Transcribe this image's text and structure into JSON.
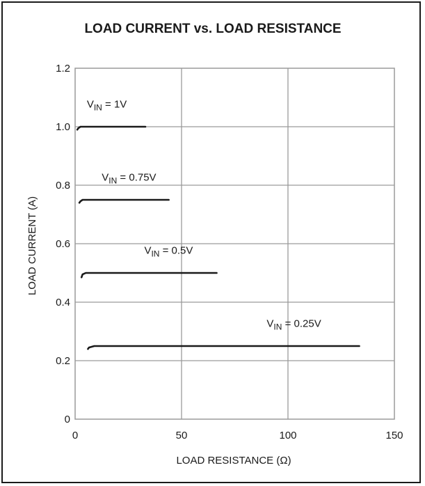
{
  "chart_data": {
    "type": "line",
    "title": "LOAD CURRENT vs. LOAD RESISTANCE",
    "xlabel": "LOAD RESISTANCE (Ω)",
    "ylabel": "LOAD CURRENT (A)",
    "xlim": [
      0,
      150
    ],
    "ylim": [
      0,
      1.2
    ],
    "xticks": [
      "0",
      "50",
      "100",
      "150"
    ],
    "yticks": [
      "0",
      "0.2",
      "0.4",
      "0.6",
      "0.8",
      "1.0",
      "1.2"
    ],
    "grid": true,
    "colors": {
      "line": "#1a1a1a",
      "grid": "#9a9a9a"
    },
    "series": [
      {
        "name": "VIN = 1V",
        "label_main": "V",
        "label_sub": "IN",
        "label_rest": " = 1V",
        "x": [
          1,
          1.5,
          2.5,
          33
        ],
        "y": [
          0.99,
          0.995,
          1.0,
          1.0
        ]
      },
      {
        "name": "VIN = 0.75V",
        "label_main": "V",
        "label_sub": "IN",
        "label_rest": " = 0.75V",
        "x": [
          2,
          2.5,
          3.5,
          44
        ],
        "y": [
          0.74,
          0.745,
          0.75,
          0.75
        ]
      },
      {
        "name": "VIN = 0.5V",
        "label_main": "V",
        "label_sub": "IN",
        "label_rest": " = 0.5V",
        "x": [
          3,
          3.5,
          5,
          66.5
        ],
        "y": [
          0.485,
          0.495,
          0.5,
          0.5
        ]
      },
      {
        "name": "VIN = 0.25V",
        "label_main": "V",
        "label_sub": "IN",
        "label_rest": " = 0.25V",
        "x": [
          6,
          6.5,
          9,
          133.5
        ],
        "y": [
          0.24,
          0.245,
          0.25,
          0.25
        ]
      }
    ]
  }
}
